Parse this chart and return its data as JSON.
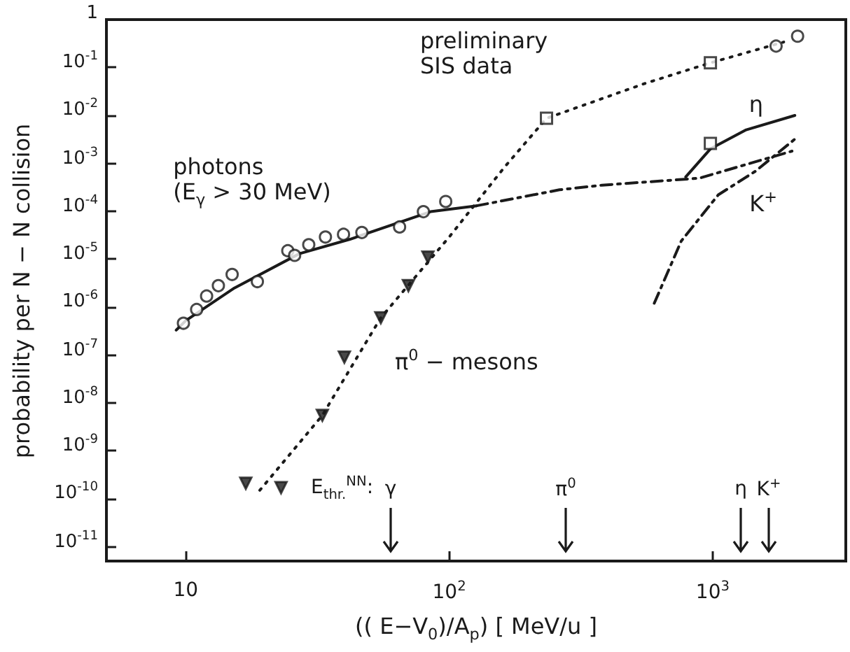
{
  "chart_data": {
    "type": "scatter",
    "xlabel": "(( E−V$_{0}$)/A$_{p}$) [ MeV/u ]",
    "ylabel": "probability per N − N collision",
    "log": "xy",
    "grid": false,
    "marker": "circle",
    "xlim": [
      5,
      3200
    ],
    "ylim": [
      5e-12,
      1
    ],
    "xticks": [
      10,
      {
        "value": 100,
        "label": "10$^{2}$"
      },
      {
        "value": 1000,
        "label": "10$^{3}$"
      }
    ],
    "yticks": [
      1,
      {
        "value": 0.1,
        "label": "10$^{-1}$"
      },
      {
        "value": 0.01,
        "label": "10$^{-2}$"
      },
      {
        "value": 0.001,
        "label": "10$^{-3}$"
      },
      {
        "value": 0.0001,
        "label": "10$^{-4}$"
      },
      {
        "value": 1e-05,
        "label": "10$^{-5}$"
      },
      {
        "value": 1e-06,
        "label": "10$^{-6}$"
      },
      {
        "value": 1e-07,
        "label": "10$^{-7}$"
      },
      {
        "value": 1e-08,
        "label": "10$^{-8}$"
      },
      {
        "value": 1e-09,
        "label": "10$^{-9}$"
      },
      {
        "value": 1e-10,
        "label": "10$^{-10}$"
      },
      {
        "value": 1e-11,
        "label": "10$^{-11}$"
      }
    ],
    "series": [
      {
        "color": "#1a1a1a",
        "x": [
          9.8,
          11,
          12,
          13.3,
          15,
          18.7,
          24.4,
          25.9,
          29.3,
          33.9,
          39.7,
          46.6,
          64.8,
          79.8,
          97
        ],
        "values": [
          4.6e-07,
          8.9e-07,
          1.7e-06,
          2.8e-06,
          4.8e-06,
          3.4e-06,
          1.5e-05,
          1.2e-05,
          2e-05,
          2.9e-05,
          3.3e-05,
          3.6e-05,
          4.7e-05,
          9.8e-05,
          0.00016
        ]
      },
      {
        "type": "line",
        "marker": "none",
        "line_style": "solid",
        "color": "#1a1a1a",
        "x": [
          9.2,
          10,
          15.3,
          27,
          42,
          85,
          127
        ],
        "values": [
          3.3e-07,
          5.2e-07,
          2.5e-06,
          1.3e-05,
          2.6e-05,
          9.8e-05,
          0.00013
        ]
      },
      {
        "type": "line",
        "marker": "none",
        "line_style": "dashed",
        "color": "#1a1a1a",
        "x": [
          127,
          262,
          380,
          890,
          2000
        ],
        "values": [
          0.00013,
          0.00028,
          0.00035,
          0.00049,
          0.0018
        ]
      },
      {
        "marker": "triangle",
        "color": "#1a1a1a",
        "x": [
          16.9,
          23,
          33,
          40,
          55,
          70,
          83
        ],
        "values": [
          2.1e-10,
          1.7e-10,
          5.5e-09,
          9e-08,
          6e-07,
          2.8e-06,
          1.1e-05
        ]
      },
      {
        "type": "line",
        "marker": "none",
        "line_style": "dotted",
        "color": "#1a1a1a",
        "x": [
          19.1,
          33,
          55,
          100,
          162,
          234,
          550,
          980,
          1860
        ],
        "values": [
          1.5e-10,
          5.5e-09,
          6e-07,
          2.9e-05,
          0.00083,
          0.0087,
          0.046,
          0.125,
          0.34
        ]
      },
      {
        "marker": "square",
        "color": "#1a1a1a",
        "x": [
          234,
          980,
          980
        ],
        "values": [
          0.0087,
          0.125,
          0.0026
        ]
      },
      {
        "color": "#1a1a1a",
        "x": [
          1740,
          2100
        ],
        "values": [
          0.28,
          0.45
        ]
      },
      {
        "type": "line",
        "marker": "none",
        "line_style": "solid",
        "color": "#1a1a1a",
        "x": [
          790,
          980,
          1340,
          2050
        ],
        "values": [
          0.00052,
          0.002,
          0.005,
          0.01
        ]
      },
      {
        "type": "line",
        "marker": "none",
        "line_style": "dashed",
        "color": "#1a1a1a",
        "x": [
          600,
          760,
          1050,
          1450,
          2050
        ],
        "values": [
          1.2e-06,
          2.4e-05,
          0.00022,
          0.00068,
          0.0032
        ]
      }
    ],
    "annotations": [
      "preliminary\nSIS data",
      "photons\n(E$_{γ}$ > 30 MeV)",
      "π$^{0}$ − mesons",
      "η",
      "K$^{+}$",
      "E$_{thr.}$$^{NN}$:",
      "γ",
      "π$^{0}$",
      "η",
      "K$^{+}$"
    ]
  }
}
